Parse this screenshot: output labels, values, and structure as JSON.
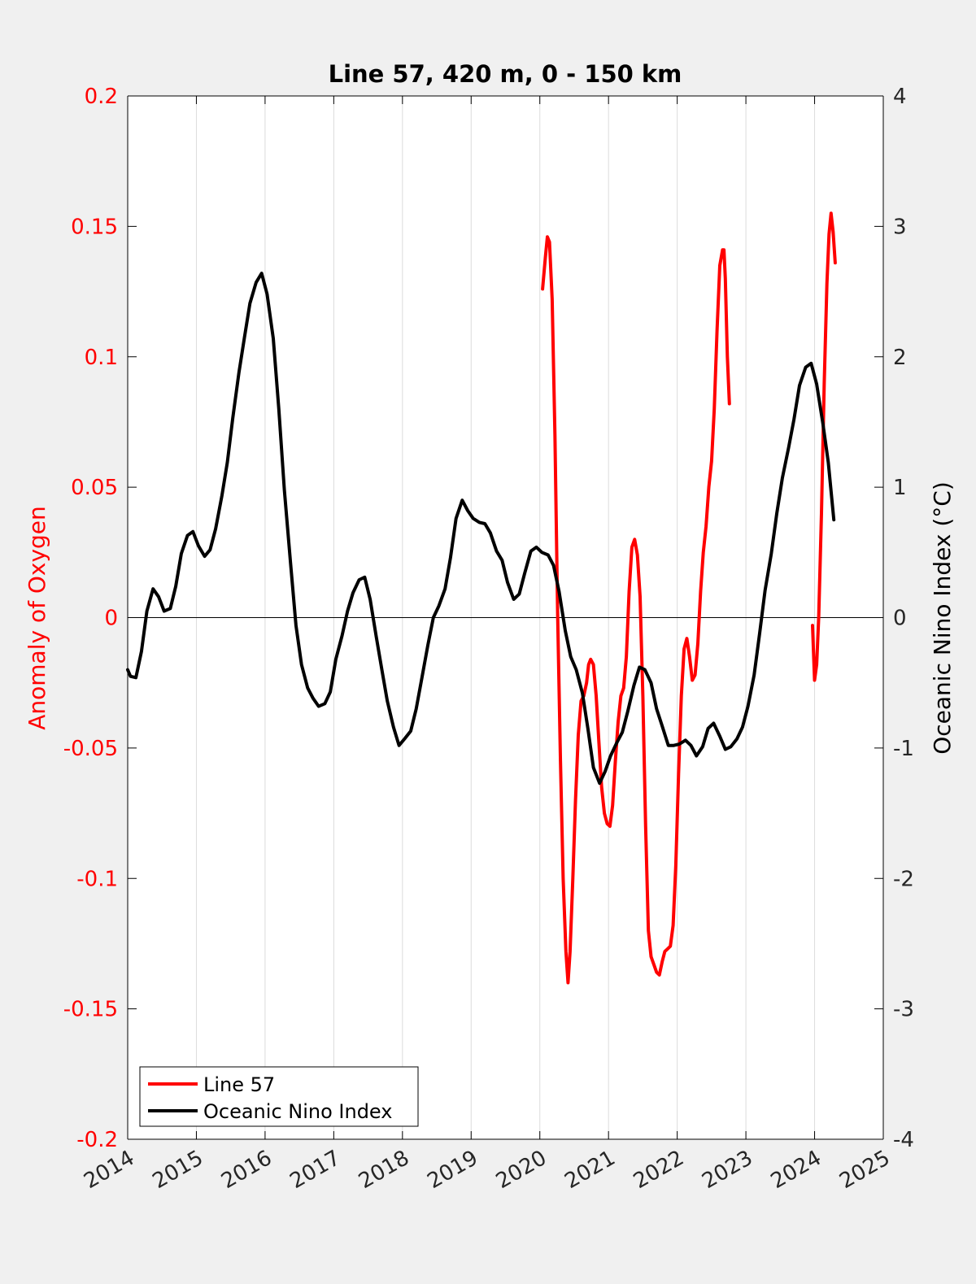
{
  "chart_data": {
    "type": "line",
    "title": "Line 57, 420 m, 0 - 150 km",
    "xlabel": "",
    "ylabel_left": "Anomaly of Oxygen",
    "ylabel_right": "Oceanic Nino Index (°C)",
    "xlim": [
      2014,
      2025
    ],
    "ylim_left": [
      -0.2,
      0.2
    ],
    "ylim_right": [
      -4,
      4
    ],
    "grid": "vertical lines at years",
    "legend_position": "bottom-left",
    "zero_line": true,
    "x_ticks": [
      "2014",
      "2015",
      "2016",
      "2017",
      "2018",
      "2019",
      "2020",
      "2021",
      "2022",
      "2023",
      "2024",
      "2025"
    ],
    "y_left_ticks": [
      "0.2",
      "0.15",
      "0.1",
      "0.05",
      "0",
      "-0.05",
      "-0.1",
      "-0.15",
      "-0.2"
    ],
    "y_right_ticks": [
      "4",
      "3",
      "2",
      "1",
      "0",
      "-1",
      "-2",
      "-3",
      "-4"
    ],
    "series": [
      {
        "name": "Line 57",
        "axis": "left",
        "color": "#ff0000",
        "segments": [
          [
            [
              2020.04,
              0.126
            ],
            [
              2020.08,
              0.138
            ],
            [
              2020.11,
              0.146
            ],
            [
              2020.14,
              0.144
            ],
            [
              2020.18,
              0.122
            ],
            [
              2020.22,
              0.07
            ],
            [
              2020.26,
              0.0
            ],
            [
              2020.3,
              -0.055
            ],
            [
              2020.34,
              -0.1
            ],
            [
              2020.38,
              -0.128
            ],
            [
              2020.41,
              -0.14
            ],
            [
              2020.44,
              -0.128
            ],
            [
              2020.48,
              -0.1
            ],
            [
              2020.52,
              -0.07
            ],
            [
              2020.56,
              -0.045
            ],
            [
              2020.6,
              -0.032
            ],
            [
              2020.64,
              -0.03
            ],
            [
              2020.68,
              -0.025
            ],
            [
              2020.71,
              -0.018
            ],
            [
              2020.74,
              -0.016
            ],
            [
              2020.78,
              -0.018
            ],
            [
              2020.82,
              -0.03
            ],
            [
              2020.86,
              -0.048
            ],
            [
              2020.9,
              -0.065
            ],
            [
              2020.94,
              -0.075
            ],
            [
              2020.98,
              -0.079
            ],
            [
              2021.02,
              -0.08
            ],
            [
              2021.06,
              -0.072
            ],
            [
              2021.1,
              -0.055
            ],
            [
              2021.14,
              -0.04
            ],
            [
              2021.18,
              -0.03
            ],
            [
              2021.22,
              -0.027
            ],
            [
              2021.26,
              -0.015
            ],
            [
              2021.3,
              0.01
            ],
            [
              2021.34,
              0.027
            ],
            [
              2021.38,
              0.03
            ],
            [
              2021.42,
              0.024
            ],
            [
              2021.46,
              0.008
            ],
            [
              2021.5,
              -0.03
            ],
            [
              2021.54,
              -0.08
            ],
            [
              2021.58,
              -0.12
            ],
            [
              2021.62,
              -0.13
            ],
            [
              2021.66,
              -0.133
            ],
            [
              2021.7,
              -0.136
            ],
            [
              2021.74,
              -0.137
            ],
            [
              2021.78,
              -0.132
            ],
            [
              2021.82,
              -0.128
            ],
            [
              2021.86,
              -0.127
            ],
            [
              2021.9,
              -0.126
            ],
            [
              2021.94,
              -0.118
            ],
            [
              2021.98,
              -0.095
            ],
            [
              2022.02,
              -0.06
            ],
            [
              2022.06,
              -0.03
            ],
            [
              2022.1,
              -0.012
            ],
            [
              2022.14,
              -0.008
            ],
            [
              2022.18,
              -0.015
            ],
            [
              2022.22,
              -0.024
            ],
            [
              2022.26,
              -0.022
            ],
            [
              2022.3,
              -0.01
            ],
            [
              2022.34,
              0.01
            ],
            [
              2022.38,
              0.025
            ],
            [
              2022.42,
              0.035
            ],
            [
              2022.46,
              0.05
            ],
            [
              2022.5,
              0.06
            ],
            [
              2022.54,
              0.08
            ],
            [
              2022.58,
              0.11
            ],
            [
              2022.62,
              0.135
            ],
            [
              2022.66,
              0.141
            ],
            [
              2022.68,
              0.141
            ],
            [
              2022.7,
              0.13
            ],
            [
              2022.73,
              0.1
            ],
            [
              2022.76,
              0.082
            ]
          ],
          [
            [
              2023.97,
              -0.003
            ],
            [
              2024.0,
              -0.024
            ],
            [
              2024.03,
              -0.018
            ],
            [
              2024.06,
              0.0
            ],
            [
              2024.1,
              0.04
            ],
            [
              2024.14,
              0.09
            ],
            [
              2024.18,
              0.128
            ],
            [
              2024.21,
              0.147
            ],
            [
              2024.24,
              0.155
            ],
            [
              2024.27,
              0.148
            ],
            [
              2024.3,
              0.136
            ]
          ]
        ]
      },
      {
        "name": "Oceanic Nino Index",
        "axis": "right",
        "color": "#000000",
        "points": [
          [
            2014.0,
            -0.4
          ],
          [
            2014.04,
            -0.45
          ],
          [
            2014.12,
            -0.46
          ],
          [
            2014.2,
            -0.26
          ],
          [
            2014.28,
            0.05
          ],
          [
            2014.37,
            0.22
          ],
          [
            2014.45,
            0.16
          ],
          [
            2014.53,
            0.05
          ],
          [
            2014.62,
            0.07
          ],
          [
            2014.7,
            0.24
          ],
          [
            2014.78,
            0.49
          ],
          [
            2014.87,
            0.63
          ],
          [
            2014.95,
            0.66
          ],
          [
            2015.03,
            0.55
          ],
          [
            2015.12,
            0.47
          ],
          [
            2015.2,
            0.52
          ],
          [
            2015.28,
            0.68
          ],
          [
            2015.37,
            0.93
          ],
          [
            2015.45,
            1.19
          ],
          [
            2015.53,
            1.53
          ],
          [
            2015.62,
            1.88
          ],
          [
            2015.7,
            2.15
          ],
          [
            2015.78,
            2.41
          ],
          [
            2015.87,
            2.57
          ],
          [
            2015.95,
            2.64
          ],
          [
            2016.03,
            2.48
          ],
          [
            2016.12,
            2.14
          ],
          [
            2016.2,
            1.6
          ],
          [
            2016.28,
            0.98
          ],
          [
            2016.37,
            0.42
          ],
          [
            2016.45,
            -0.06
          ],
          [
            2016.53,
            -0.36
          ],
          [
            2016.62,
            -0.54
          ],
          [
            2016.7,
            -0.62
          ],
          [
            2016.78,
            -0.68
          ],
          [
            2016.87,
            -0.66
          ],
          [
            2016.95,
            -0.57
          ],
          [
            2017.03,
            -0.32
          ],
          [
            2017.12,
            -0.14
          ],
          [
            2017.2,
            0.05
          ],
          [
            2017.28,
            0.19
          ],
          [
            2017.37,
            0.29
          ],
          [
            2017.45,
            0.31
          ],
          [
            2017.53,
            0.14
          ],
          [
            2017.62,
            -0.15
          ],
          [
            2017.7,
            -0.4
          ],
          [
            2017.78,
            -0.64
          ],
          [
            2017.87,
            -0.84
          ],
          [
            2017.95,
            -0.98
          ],
          [
            2018.03,
            -0.93
          ],
          [
            2018.12,
            -0.87
          ],
          [
            2018.2,
            -0.7
          ],
          [
            2018.28,
            -0.47
          ],
          [
            2018.37,
            -0.21
          ],
          [
            2018.45,
            0.0
          ],
          [
            2018.53,
            0.09
          ],
          [
            2018.62,
            0.22
          ],
          [
            2018.7,
            0.46
          ],
          [
            2018.78,
            0.76
          ],
          [
            2018.87,
            0.9
          ],
          [
            2018.95,
            0.82
          ],
          [
            2019.03,
            0.76
          ],
          [
            2019.12,
            0.73
          ],
          [
            2019.2,
            0.72
          ],
          [
            2019.28,
            0.65
          ],
          [
            2019.37,
            0.51
          ],
          [
            2019.45,
            0.44
          ],
          [
            2019.53,
            0.27
          ],
          [
            2019.62,
            0.14
          ],
          [
            2019.7,
            0.18
          ],
          [
            2019.78,
            0.34
          ],
          [
            2019.87,
            0.51
          ],
          [
            2019.95,
            0.54
          ],
          [
            2020.03,
            0.5
          ],
          [
            2020.12,
            0.48
          ],
          [
            2020.2,
            0.4
          ],
          [
            2020.28,
            0.2
          ],
          [
            2020.37,
            -0.1
          ],
          [
            2020.45,
            -0.3
          ],
          [
            2020.53,
            -0.4
          ],
          [
            2020.62,
            -0.58
          ],
          [
            2020.7,
            -0.85
          ],
          [
            2020.78,
            -1.15
          ],
          [
            2020.87,
            -1.27
          ],
          [
            2020.95,
            -1.18
          ],
          [
            2021.03,
            -1.06
          ],
          [
            2021.12,
            -0.96
          ],
          [
            2021.2,
            -0.88
          ],
          [
            2021.28,
            -0.72
          ],
          [
            2021.37,
            -0.52
          ],
          [
            2021.45,
            -0.38
          ],
          [
            2021.53,
            -0.4
          ],
          [
            2021.62,
            -0.5
          ],
          [
            2021.7,
            -0.7
          ],
          [
            2021.78,
            -0.83
          ],
          [
            2021.87,
            -0.98
          ],
          [
            2021.95,
            -0.98
          ],
          [
            2022.03,
            -0.97
          ],
          [
            2022.12,
            -0.94
          ],
          [
            2022.2,
            -0.98
          ],
          [
            2022.28,
            -1.06
          ],
          [
            2022.37,
            -0.99
          ],
          [
            2022.45,
            -0.85
          ],
          [
            2022.53,
            -0.81
          ],
          [
            2022.62,
            -0.91
          ],
          [
            2022.7,
            -1.01
          ],
          [
            2022.78,
            -0.99
          ],
          [
            2022.87,
            -0.93
          ],
          [
            2022.95,
            -0.84
          ],
          [
            2023.03,
            -0.68
          ],
          [
            2023.12,
            -0.44
          ],
          [
            2023.2,
            -0.12
          ],
          [
            2023.28,
            0.21
          ],
          [
            2023.37,
            0.49
          ],
          [
            2023.45,
            0.8
          ],
          [
            2023.53,
            1.07
          ],
          [
            2023.62,
            1.3
          ],
          [
            2023.7,
            1.52
          ],
          [
            2023.78,
            1.78
          ],
          [
            2023.87,
            1.92
          ],
          [
            2023.95,
            1.95
          ],
          [
            2024.03,
            1.79
          ],
          [
            2024.12,
            1.49
          ],
          [
            2024.2,
            1.19
          ],
          [
            2024.28,
            0.75
          ]
        ]
      }
    ]
  }
}
